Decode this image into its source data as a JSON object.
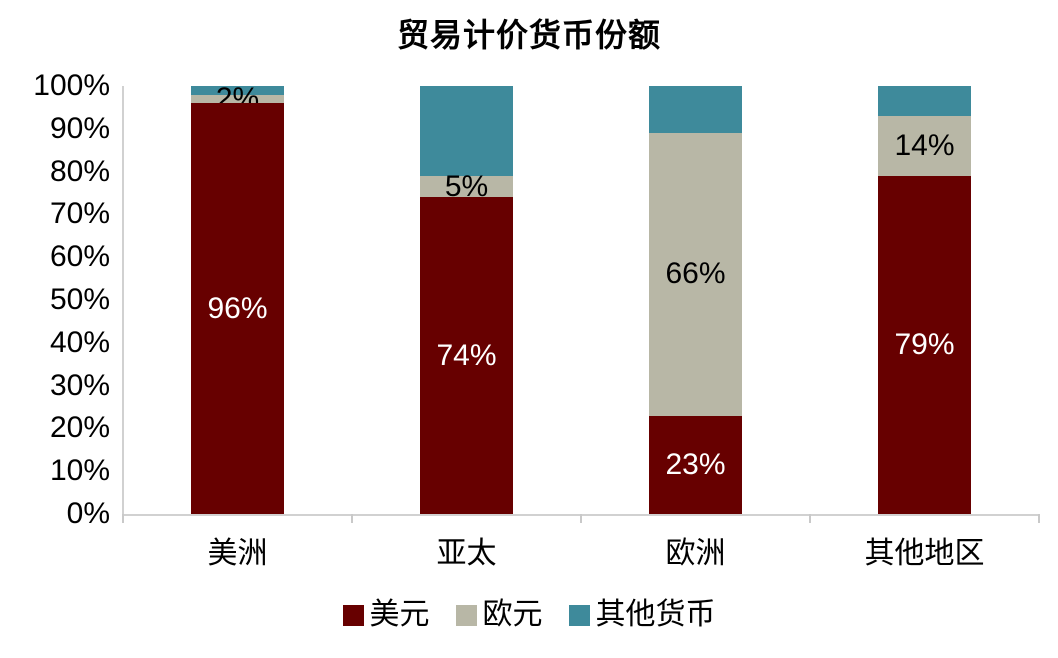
{
  "title": "贸易计价货币份额",
  "colors": {
    "usd": "#670000",
    "eur": "#B8B7A6",
    "other": "#3E8A9B",
    "axis": "#D1D1D1",
    "label_on_dark": "#FFFFFF",
    "label_on_light": "#000000"
  },
  "chart_data": {
    "type": "bar",
    "stacked": true,
    "title": "贸易计价货币份额",
    "categories": [
      "美洲",
      "亚太",
      "欧洲",
      "其他地区"
    ],
    "series": [
      {
        "name": "美元",
        "color": "#670000",
        "values": [
          96,
          74,
          23,
          79
        ],
        "data_labels": [
          "96%",
          "74%",
          "23%",
          "79%"
        ],
        "label_color": "#FFFFFF",
        "show_labels": true
      },
      {
        "name": "欧元",
        "color": "#B8B7A6",
        "values": [
          2,
          5,
          66,
          14
        ],
        "data_labels": [
          "2%",
          "5%",
          "66%",
          "14%"
        ],
        "label_color": "#000000",
        "show_labels": true
      },
      {
        "name": "其他货币",
        "color": "#3E8A9B",
        "values": [
          2,
          21,
          11,
          7
        ],
        "data_labels": [
          "",
          "",
          "",
          ""
        ],
        "label_color": "#000000",
        "show_labels": false
      }
    ],
    "xlabel": "",
    "ylabel": "",
    "ylim": [
      0,
      100
    ],
    "y_ticks": [
      "0%",
      "10%",
      "20%",
      "30%",
      "40%",
      "50%",
      "60%",
      "70%",
      "80%",
      "90%",
      "100%"
    ],
    "grid": false,
    "legend_position": "bottom"
  }
}
